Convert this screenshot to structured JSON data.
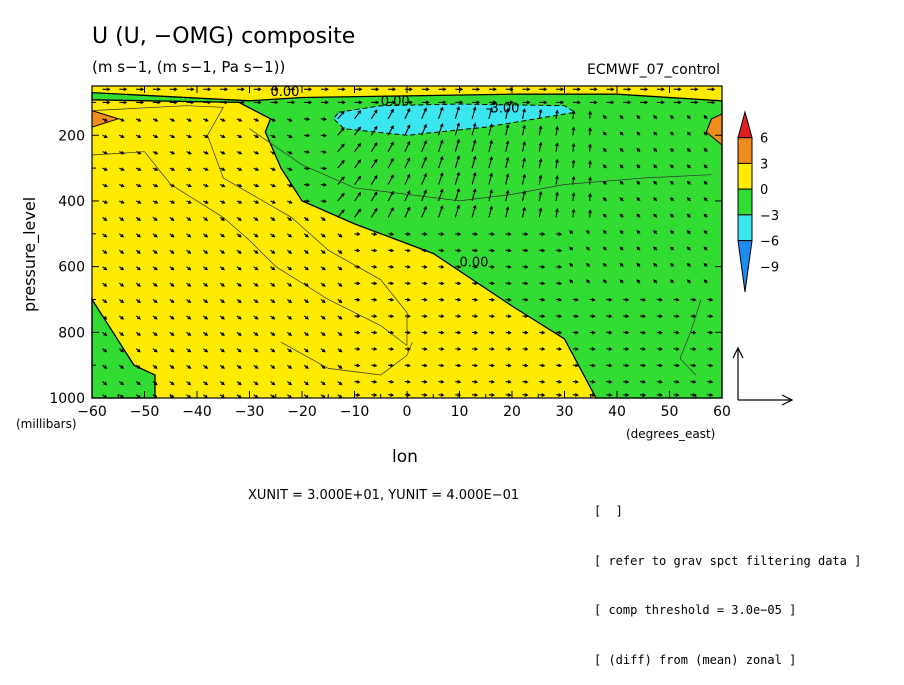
{
  "title": "U (U, −OMG) composite",
  "subtitle": "(m s−1, (m s−1, Pa s−1))",
  "run_name": "ECMWF_07_control",
  "unit_note": "XUNIT = 3.000E+01, YUNIT = 4.000E−01",
  "notes": [
    "[  ]",
    "[ refer to grav spct filtering data ]",
    "[ comp threshold = 3.0e−05 ]",
    "[ (diff) from (mean) zonal ]"
  ],
  "colors": {
    "c_pos6": "#e02020",
    "c_pos3": "#f08c1e",
    "c_0": "#ffeb00",
    "c_neg3": "#32dc32",
    "c_neg6": "#3ce6f0",
    "c_neg9": "#1e8cf0"
  },
  "chart_data": {
    "type": "contour_vector",
    "xlabel": "lon",
    "xunit_label": "(degrees_east)",
    "ylabel": "pressure_level",
    "yunit_label": "(millibars)",
    "xlim": [
      -60,
      60
    ],
    "ylim": [
      1000,
      50
    ],
    "y_reversed": true,
    "x_ticks": [
      -60,
      -50,
      -40,
      -30,
      -20,
      -10,
      0,
      10,
      20,
      30,
      40,
      50,
      60
    ],
    "x_tick_labels": [
      "−60",
      "−50",
      "−40",
      "−30",
      "−20",
      "−10",
      "0",
      "10",
      "20",
      "30",
      "40",
      "50",
      "60"
    ],
    "y_ticks": [
      200,
      400,
      600,
      800,
      1000
    ],
    "y_tick_labels": [
      "200",
      "400",
      "600",
      "800",
      "1000"
    ],
    "colorbar": {
      "levels": [
        6,
        3,
        0,
        -3,
        -6,
        -9
      ],
      "labels": [
        "6",
        "3",
        "0",
        "−3",
        "−6",
        "−9"
      ]
    },
    "contour_labels": [
      {
        "text": "0.00",
        "lon": -26,
        "p": 80
      },
      {
        "text": "0.00",
        "lon": -5,
        "p": 110
      },
      {
        "text": "-3.00",
        "lon": 15,
        "p": 130
      },
      {
        "text": "0.00",
        "lon": 10,
        "p": 600
      }
    ],
    "regions": {
      "negative_main": [
        [
          -60,
          70
        ],
        [
          -30,
          95
        ],
        [
          -20,
          85
        ],
        [
          0,
          80
        ],
        [
          20,
          75
        ],
        [
          40,
          75
        ],
        [
          60,
          95
        ],
        [
          60,
          1000
        ],
        [
          36,
          1000
        ],
        [
          30,
          820
        ],
        [
          20,
          720
        ],
        [
          5,
          560
        ],
        [
          -10,
          470
        ],
        [
          -20,
          400
        ],
        [
          -24,
          300
        ],
        [
          -27,
          190
        ],
        [
          -26,
          150
        ],
        [
          -32,
          100
        ],
        [
          -60,
          92
        ]
      ],
      "negative_core": [
        [
          -13,
          130
        ],
        [
          -5,
          110
        ],
        [
          10,
          105
        ],
        [
          30,
          110
        ],
        [
          32,
          130
        ],
        [
          15,
          175
        ],
        [
          0,
          200
        ],
        [
          -12,
          180
        ],
        [
          -14,
          150
        ]
      ],
      "negative_sw": [
        [
          -60,
          700
        ],
        [
          -56,
          800
        ],
        [
          -52,
          900
        ],
        [
          -48,
          930
        ],
        [
          -48,
          1000
        ],
        [
          -60,
          1000
        ]
      ],
      "positive_w": [
        [
          -60,
          125
        ],
        [
          -55,
          150
        ],
        [
          -60,
          175
        ]
      ],
      "positive_e": [
        [
          58,
          150
        ],
        [
          60,
          135
        ],
        [
          60,
          230
        ],
        [
          57,
          190
        ]
      ]
    },
    "thin_contours": [
      [
        [
          -60,
          260
        ],
        [
          -50,
          250
        ],
        [
          -45,
          350
        ],
        [
          -35,
          450
        ],
        [
          -30,
          520
        ],
        [
          -25,
          600
        ],
        [
          -15,
          700
        ],
        [
          -5,
          780
        ],
        [
          0,
          840
        ]
      ],
      [
        [
          -60,
          125
        ],
        [
          -42,
          110
        ],
        [
          -35,
          115
        ],
        [
          -38,
          200
        ],
        [
          -35,
          330
        ],
        [
          -22,
          450
        ],
        [
          -15,
          550
        ],
        [
          -5,
          640
        ],
        [
          0,
          740
        ],
        [
          0,
          840
        ]
      ],
      [
        [
          -24,
          830
        ],
        [
          -15,
          910
        ],
        [
          -5,
          930
        ],
        [
          0,
          870
        ],
        [
          1,
          830
        ]
      ],
      [
        [
          -30,
          180
        ],
        [
          -20,
          290
        ],
        [
          -10,
          360
        ],
        [
          10,
          400
        ],
        [
          20,
          380
        ],
        [
          30,
          350
        ],
        [
          45,
          330
        ],
        [
          58,
          320
        ]
      ],
      [
        [
          56,
          700
        ],
        [
          54,
          800
        ],
        [
          52,
          880
        ],
        [
          55,
          930
        ]
      ]
    ],
    "reference_vector": {
      "xunit": 30.0,
      "yunit": 0.4
    }
  }
}
